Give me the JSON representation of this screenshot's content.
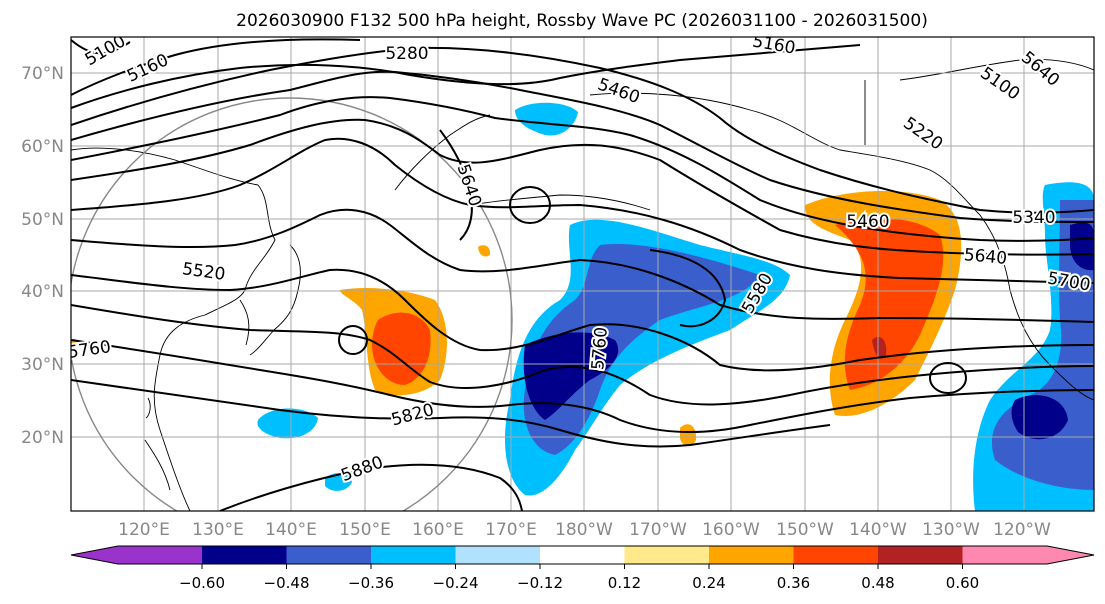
{
  "title": "2026030900 F132 500 hPa height, Rossby Wave PC (2026031100 - 2026031500)",
  "map": {
    "lat_labels": [
      "70°N",
      "60°N",
      "50°N",
      "40°N",
      "30°N",
      "20°N"
    ],
    "lon_labels": [
      "120°E",
      "130°E",
      "140°E",
      "150°E",
      "160°E",
      "170°E",
      "180°W",
      "170°W",
      "160°W",
      "150°W",
      "140°W",
      "130°W",
      "120°W"
    ],
    "contour_labels": [
      "5100",
      "5160",
      "5280",
      "5160",
      "5100",
      "5640",
      "5460",
      "5220",
      "5640",
      "5520",
      "5460",
      "5340",
      "5640",
      "5700",
      "5580",
      "5760",
      "5760",
      "5820",
      "5880"
    ]
  },
  "colorbar": {
    "ticks": [
      "−0.60",
      "−0.48",
      "−0.36",
      "−0.24",
      "−0.12",
      "0.12",
      "0.24",
      "0.36",
      "0.48",
      "0.60"
    ],
    "colors": [
      "#9933cc",
      "#00008b",
      "#3a5fcd",
      "#00bfff",
      "#b0e2ff",
      "#ffffff",
      "#ffe98a",
      "#ffa500",
      "#ff4500",
      "#b22222",
      "#ff88b0"
    ]
  }
}
